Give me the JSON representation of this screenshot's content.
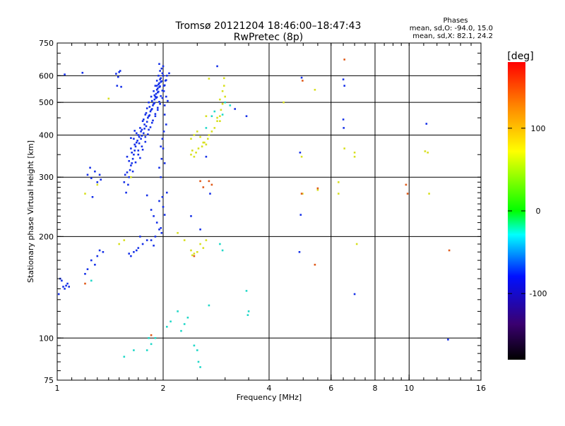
{
  "chart_data": {
    "type": "scatter",
    "title": "Tromsø 20121204 18:46:00–18:47:43",
    "subtitle": "RwPretec (8p)",
    "xlabel": "Frequency [MHz]",
    "ylabel": "Stationary phase Virtual Height [km]",
    "xscale": "log",
    "yscale": "log",
    "xlim": [
      1,
      16
    ],
    "ylim": [
      75,
      750
    ],
    "x_ticks": [
      1,
      2,
      4,
      6,
      8,
      10,
      16
    ],
    "y_ticks": [
      75,
      100,
      200,
      300,
      400,
      500,
      600,
      750
    ],
    "grid": true,
    "stats": {
      "heading": "Phases",
      "line_o": "mean, sd,O: -94.0, 15.0",
      "line_x": "mean, sd,X:  82.1, 24.2"
    },
    "colorbar": {
      "label": "[deg]",
      "range": [
        -180,
        180
      ],
      "ticks": [
        100,
        0,
        -100
      ]
    },
    "series": [
      {
        "points": [
          [
            1.03,
            148
          ],
          [
            1.05,
            140
          ],
          [
            1.06,
            143
          ],
          [
            1.04,
            142
          ],
          [
            1.07,
            145
          ],
          [
            1.02,
            150
          ],
          [
            1.01,
            135
          ],
          [
            1.08,
            142
          ],
          [
            1.22,
            305
          ],
          [
            1.25,
            298
          ],
          [
            1.28,
            312
          ],
          [
            1.3,
            290
          ],
          [
            1.26,
            262
          ],
          [
            1.32,
            305
          ],
          [
            1.24,
            320
          ],
          [
            1.33,
            295
          ],
          [
            1.18,
            612
          ],
          [
            1.47,
            608
          ],
          [
            1.5,
            615
          ],
          [
            1.48,
            560
          ],
          [
            1.52,
            556
          ],
          [
            1.49,
            595
          ],
          [
            1.51,
            620
          ],
          [
            1.95,
            320
          ],
          [
            1.98,
            340
          ],
          [
            2.0,
            365
          ],
          [
            2.02,
            330
          ],
          [
            1.97,
            300
          ],
          [
            1.9,
            520
          ],
          [
            1.92,
            560
          ],
          [
            1.8,
            265
          ],
          [
            1.85,
            240
          ],
          [
            1.88,
            230
          ],
          [
            1.95,
            255
          ],
          [
            2.0,
            245
          ],
          [
            1.92,
            220
          ],
          [
            1.97,
            212
          ],
          [
            2.02,
            232
          ],
          [
            1.9,
            200
          ],
          [
            1.95,
            210
          ],
          [
            1.85,
            195
          ],
          [
            1.98,
            205
          ],
          [
            1.88,
            188
          ],
          [
            2.05,
            270
          ],
          [
            1.99,
            262
          ],
          [
            1.6,
            178
          ],
          [
            1.65,
            180
          ],
          [
            1.7,
            185
          ],
          [
            1.75,
            190
          ],
          [
            1.8,
            195
          ],
          [
            1.72,
            200
          ],
          [
            1.68,
            182
          ],
          [
            1.62,
            175
          ],
          [
            1.25,
            170
          ],
          [
            1.3,
            175
          ],
          [
            1.35,
            180
          ],
          [
            1.28,
            165
          ],
          [
            1.22,
            160
          ],
          [
            1.32,
            182
          ],
          [
            1.2,
            155
          ],
          [
            1.6,
            300
          ],
          [
            1.62,
            325
          ],
          [
            1.65,
            350
          ],
          [
            1.68,
            380
          ],
          [
            1.7,
            400
          ],
          [
            1.72,
            420
          ],
          [
            1.75,
            440
          ],
          [
            1.78,
            460
          ],
          [
            1.8,
            480
          ],
          [
            1.82,
            500
          ],
          [
            1.85,
            520
          ],
          [
            1.88,
            540
          ],
          [
            1.9,
            560
          ],
          [
            1.92,
            580
          ],
          [
            1.94,
            600
          ],
          [
            1.96,
            620
          ],
          [
            1.55,
            290
          ],
          [
            1.58,
            310
          ],
          [
            1.63,
            330
          ],
          [
            1.66,
            360
          ],
          [
            1.69,
            385
          ],
          [
            1.73,
            410
          ],
          [
            1.77,
            430
          ],
          [
            1.81,
            450
          ],
          [
            1.84,
            470
          ],
          [
            1.87,
            490
          ],
          [
            1.89,
            510
          ],
          [
            1.91,
            530
          ],
          [
            1.93,
            550
          ],
          [
            1.95,
            570
          ],
          [
            1.97,
            590
          ],
          [
            1.99,
            610
          ],
          [
            1.57,
            270
          ],
          [
            1.59,
            285
          ],
          [
            1.61,
            315
          ],
          [
            1.64,
            340
          ],
          [
            1.67,
            370
          ],
          [
            1.71,
            395
          ],
          [
            1.74,
            415
          ],
          [
            1.76,
            445
          ],
          [
            1.79,
            465
          ],
          [
            1.83,
            485
          ],
          [
            1.86,
            505
          ],
          [
            1.89,
            525
          ],
          [
            1.92,
            545
          ],
          [
            1.94,
            565
          ],
          [
            1.96,
            585
          ],
          [
            1.98,
            630
          ],
          [
            1.56,
            305
          ],
          [
            1.6,
            335
          ],
          [
            1.63,
            355
          ],
          [
            1.66,
            375
          ],
          [
            1.7,
            360
          ],
          [
            1.73,
            390
          ],
          [
            1.76,
            405
          ],
          [
            1.79,
            425
          ],
          [
            1.82,
            455
          ],
          [
            1.85,
            475
          ],
          [
            1.88,
            495
          ],
          [
            1.91,
            515
          ],
          [
            1.93,
            535
          ],
          [
            1.95,
            555
          ],
          [
            1.97,
            575
          ],
          [
            2.0,
            600
          ],
          [
            1.58,
            345
          ],
          [
            1.62,
            365
          ],
          [
            1.65,
            390
          ],
          [
            1.68,
            405
          ],
          [
            1.71,
            378
          ],
          [
            1.74,
            398
          ],
          [
            1.77,
            418
          ],
          [
            1.8,
            438
          ],
          [
            1.83,
            458
          ],
          [
            1.86,
            478
          ],
          [
            1.89,
            498
          ],
          [
            1.92,
            518
          ],
          [
            1.94,
            538
          ],
          [
            1.96,
            558
          ],
          [
            1.98,
            578
          ],
          [
            2.01,
            540
          ],
          [
            1.62,
            392
          ],
          [
            1.66,
            412
          ],
          [
            1.7,
            350
          ],
          [
            1.74,
            370
          ],
          [
            1.78,
            395
          ],
          [
            1.82,
            415
          ],
          [
            1.86,
            435
          ],
          [
            1.9,
            455
          ],
          [
            1.93,
            475
          ],
          [
            1.96,
            495
          ],
          [
            1.99,
            515
          ],
          [
            2.02,
            460
          ],
          [
            2.04,
            430
          ],
          [
            2.01,
            410
          ],
          [
            1.99,
            390
          ],
          [
            1.97,
            370
          ],
          [
            2.02,
            490
          ],
          [
            2.04,
            520
          ],
          [
            2.01,
            560
          ],
          [
            2.03,
            580
          ],
          [
            2.05,
            600
          ],
          [
            2.0,
            640
          ],
          [
            1.95,
            650
          ],
          [
            2.08,
            610
          ],
          [
            1.64,
            312
          ],
          [
            1.67,
            332
          ],
          [
            1.72,
            342
          ],
          [
            1.75,
            362
          ],
          [
            1.78,
            382
          ],
          [
            1.81,
            402
          ],
          [
            1.84,
            422
          ],
          [
            1.87,
            442
          ],
          [
            1.9,
            462
          ],
          [
            1.93,
            482
          ],
          [
            1.95,
            502
          ],
          [
            1.97,
            522
          ],
          [
            1.99,
            542
          ],
          [
            2.02,
            562
          ],
          [
            2.04,
            582
          ],
          [
            2.06,
            505
          ],
          [
            4.95,
            592
          ],
          [
            4.9,
            355
          ],
          [
            4.92,
            232
          ],
          [
            4.88,
            180
          ],
          [
            6.5,
            585
          ],
          [
            6.55,
            560
          ],
          [
            6.5,
            445
          ],
          [
            6.52,
            420
          ],
          [
            7.0,
            135
          ],
          [
            3.45,
            455
          ],
          [
            3.2,
            478
          ],
          [
            2.85,
            640
          ],
          [
            2.72,
            268
          ],
          [
            2.65,
            345
          ],
          [
            2.4,
            230
          ],
          [
            2.55,
            210
          ],
          [
            11.2,
            432
          ],
          [
            12.9,
            99
          ],
          [
            1.05,
            605
          ]
        ]
      },
      {
        "points": [
          [
            2.4,
            390
          ],
          [
            2.45,
            400
          ],
          [
            2.5,
            410
          ],
          [
            2.55,
            395
          ],
          [
            2.6,
            380
          ],
          [
            2.65,
            375
          ],
          [
            2.7,
            400
          ],
          [
            2.75,
            410
          ],
          [
            2.8,
            420
          ],
          [
            2.85,
            440
          ],
          [
            2.9,
            455
          ],
          [
            2.92,
            475
          ],
          [
            2.95,
            495
          ],
          [
            2.9,
            510
          ],
          [
            2.42,
            360
          ],
          [
            2.48,
            355
          ],
          [
            2.52,
            365
          ],
          [
            2.58,
            370
          ],
          [
            2.62,
            380
          ],
          [
            2.68,
            390
          ],
          [
            2.4,
            350
          ],
          [
            2.45,
            345
          ],
          [
            2.4,
            182
          ],
          [
            2.45,
            178
          ],
          [
            2.5,
            180
          ],
          [
            2.55,
            190
          ],
          [
            2.6,
            185
          ],
          [
            2.65,
            195
          ],
          [
            2.42,
            176
          ],
          [
            2.98,
            560
          ],
          [
            2.98,
            590
          ],
          [
            2.95,
            540
          ],
          [
            3.0,
            520
          ],
          [
            2.9,
            440
          ],
          [
            2.85,
            450
          ],
          [
            4.95,
            345
          ],
          [
            4.98,
            268
          ],
          [
            5.4,
            545
          ],
          [
            5.5,
            275
          ],
          [
            4.4,
            500
          ],
          [
            6.3,
            268
          ],
          [
            6.3,
            290
          ],
          [
            6.55,
            365
          ],
          [
            7.0,
            355
          ],
          [
            7.0,
            345
          ],
          [
            7.1,
            190
          ],
          [
            11.3,
            355
          ],
          [
            11.1,
            358
          ],
          [
            11.4,
            268
          ],
          [
            1.4,
            513
          ],
          [
            1.62,
            300
          ],
          [
            1.3,
            285
          ],
          [
            1.2,
            268
          ],
          [
            2.7,
            588
          ],
          [
            2.65,
            455
          ],
          [
            1.55,
            195
          ],
          [
            1.5,
            190
          ],
          [
            2.2,
            205
          ],
          [
            2.3,
            195
          ]
        ]
      },
      {
        "points": [
          [
            6.55,
            670
          ],
          [
            4.98,
            580
          ],
          [
            4.95,
            268
          ],
          [
            5.4,
            165
          ],
          [
            5.5,
            278
          ],
          [
            9.8,
            285
          ],
          [
            9.9,
            268
          ],
          [
            13.0,
            182
          ],
          [
            2.55,
            292
          ],
          [
            2.6,
            280
          ],
          [
            2.75,
            285
          ],
          [
            2.7,
            292
          ],
          [
            1.2,
            145
          ],
          [
            2.45,
            175
          ],
          [
            1.85,
            102
          ]
        ]
      },
      {
        "points": [
          [
            1.82,
            100
          ],
          [
            1.9,
            100
          ],
          [
            1.8,
            92
          ],
          [
            1.85,
            96
          ],
          [
            2.1,
            112
          ],
          [
            2.05,
            108
          ],
          [
            2.2,
            120
          ],
          [
            1.25,
            148
          ],
          [
            3.45,
            138
          ],
          [
            3.48,
            117
          ],
          [
            2.95,
            182
          ],
          [
            2.7,
            125
          ],
          [
            2.5,
            92
          ],
          [
            2.45,
            95
          ],
          [
            2.52,
            85
          ],
          [
            1.55,
            88
          ],
          [
            2.9,
            190
          ],
          [
            2.95,
            460
          ],
          [
            3.1,
            490
          ],
          [
            3.0,
            500
          ],
          [
            2.65,
            420
          ],
          [
            2.75,
            455
          ],
          [
            2.8,
            470
          ],
          [
            1.65,
            92
          ],
          [
            3.5,
            120
          ],
          [
            2.55,
            82
          ],
          [
            2.35,
            115
          ],
          [
            2.3,
            110
          ],
          [
            2.25,
            105
          ]
        ]
      }
    ]
  }
}
